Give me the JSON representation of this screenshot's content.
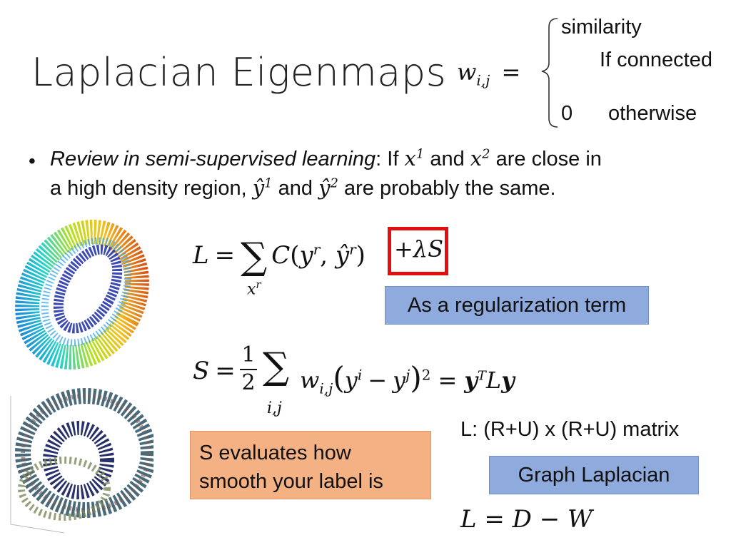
{
  "title": "Laplacian Eigenmaps",
  "weight_def": {
    "lhs": "w",
    "lhs_sub": "i,j",
    "case1_value": "similarity",
    "case1_cond": "If connected",
    "case2_value": "0",
    "case2_cond": "otherwise"
  },
  "bullet": {
    "italic_lead": "Review in semi-supervised learning",
    "colon_if": ": If ",
    "x": "x",
    "sup1": "1",
    "and": " and ",
    "sup2": "2",
    "close": " are close in",
    "line2_a": "a high density region, ",
    "yhat": "ŷ",
    "line2_b": " are probably the same."
  },
  "eq1": {
    "L": "L",
    "eq": "=",
    "sum": "∑",
    "sum_sub": "x",
    "sum_sub_sup": "r",
    "C": "C",
    "y": "y",
    "r": "r",
    "yhat": "ŷ",
    "reg": "+λS"
  },
  "reg_label": "As a regularization term",
  "eq2": {
    "S": "S",
    "eq": "=",
    "num": "1",
    "den": "2",
    "sum": "∑",
    "sum_sub": "i,j",
    "w": "w",
    "w_sub": "i,j",
    "y": "y",
    "i": "i",
    "minus": "−",
    "j": "j",
    "square": "2",
    "rhs_y": "y",
    "T": "T",
    "L": "L"
  },
  "matrix_note": "L: (R+U) x (R+U) matrix",
  "graph_laplacian": "Graph Laplacian",
  "smooth_label": "S evaluates how smooth your label is",
  "eq3": "L = D − W"
}
